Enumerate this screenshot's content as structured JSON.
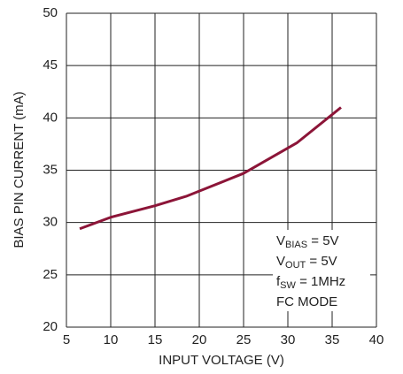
{
  "chart_data": {
    "type": "line",
    "xlabel": "INPUT VOLTAGE (V)",
    "ylabel": "BIAS PIN CURRENT (mA)",
    "x": [
      6.5,
      10,
      15,
      18.5,
      20,
      25,
      31,
      36
    ],
    "series": [
      {
        "color": "#8c1538",
        "values": [
          29.4,
          30.5,
          31.6,
          32.5,
          33,
          34.7,
          37.6,
          41
        ]
      }
    ],
    "xlim": [
      5,
      40
    ],
    "xticks": [
      5,
      10,
      15,
      20,
      25,
      30,
      35,
      40
    ],
    "ylim": [
      20,
      50
    ],
    "yticks": [
      20,
      25,
      30,
      35,
      40,
      45,
      50
    ],
    "grid": true,
    "annotations": [
      [
        "V",
        "BIAS",
        " = 5V"
      ],
      [
        "V",
        "OUT",
        " = 5V"
      ],
      [
        "f",
        "SW",
        " = 1MHz"
      ],
      [
        "FC MODE"
      ]
    ]
  }
}
